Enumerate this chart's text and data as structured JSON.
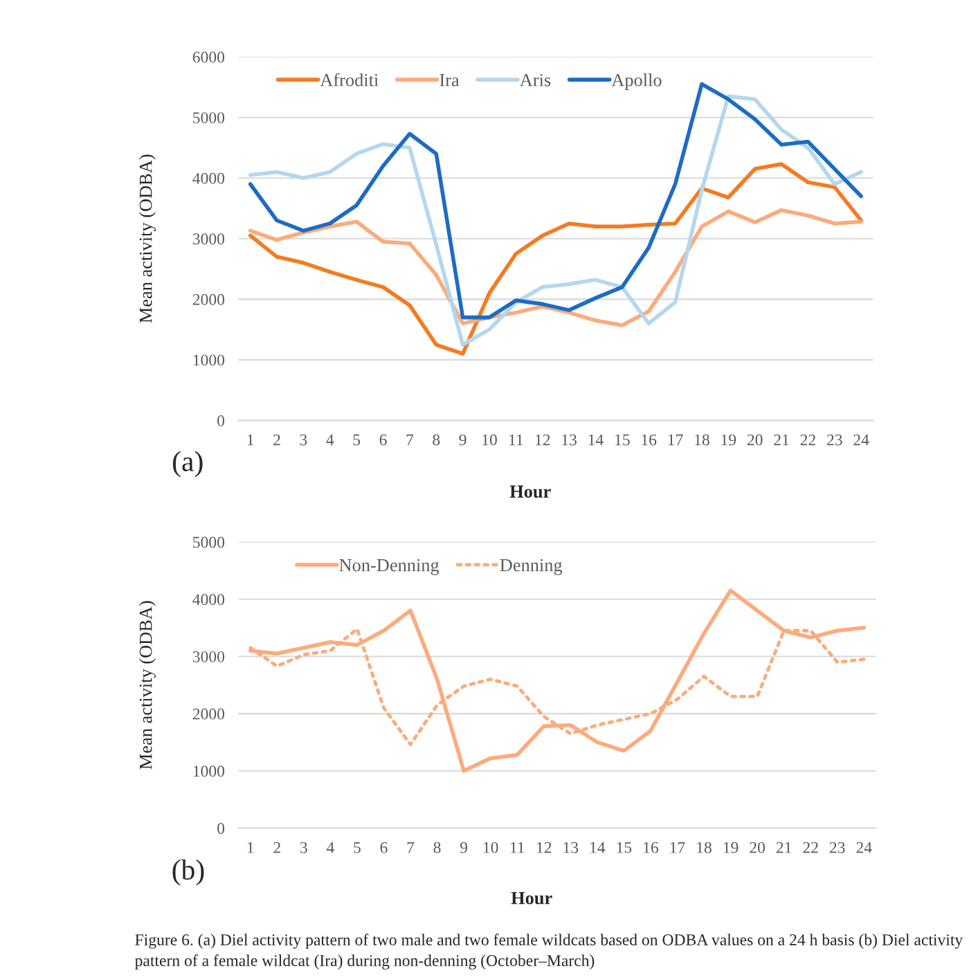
{
  "chart_data": [
    {
      "type": "line",
      "xlabel": "Hour",
      "ylabel": "Mean activity (ODBA)",
      "annotations": [
        "(a)"
      ],
      "categories": [
        "1",
        "2",
        "3",
        "4",
        "5",
        "6",
        "7",
        "8",
        "9",
        "10",
        "11",
        "12",
        "13",
        "14",
        "15",
        "16",
        "17",
        "18",
        "19",
        "20",
        "21",
        "22",
        "23",
        "24"
      ],
      "ylim": [
        0,
        6000
      ],
      "yticks": [
        0,
        1000,
        2000,
        3000,
        4000,
        5000,
        6000
      ],
      "grid": "y",
      "legend": "top",
      "line_style": "solid",
      "series": [
        {
          "name": "Afroditi",
          "color": "#f47b20",
          "values": [
            3050,
            2700,
            2600,
            2450,
            2320,
            2200,
            1900,
            1250,
            1100,
            2100,
            2750,
            3050,
            3250,
            3200,
            3200,
            3230,
            3250,
            3830,
            3680,
            4150,
            4230,
            3930,
            3850,
            3300
          ]
        },
        {
          "name": "Ira",
          "color": "#fbab7c",
          "values": [
            3130,
            2980,
            3100,
            3200,
            3280,
            2950,
            2920,
            2400,
            1600,
            1700,
            1780,
            1880,
            1780,
            1650,
            1570,
            1800,
            2450,
            3200,
            3450,
            3270,
            3470,
            3380,
            3250,
            3280
          ]
        },
        {
          "name": "Aris",
          "color": "#b4d7ee",
          "values": [
            4050,
            4100,
            4000,
            4100,
            4400,
            4560,
            4500,
            2900,
            1250,
            1500,
            1950,
            2200,
            2250,
            2320,
            2200,
            1600,
            1950,
            3800,
            5350,
            5300,
            4800,
            4500,
            3900,
            4100
          ]
        },
        {
          "name": "Apollo",
          "color": "#1d6cc4",
          "values": [
            3900,
            3300,
            3130,
            3250,
            3550,
            4200,
            4730,
            4400,
            1700,
            1700,
            1980,
            1920,
            1820,
            2020,
            2200,
            2850,
            3900,
            5550,
            5300,
            4970,
            4550,
            4600,
            4150,
            3700
          ]
        }
      ]
    },
    {
      "type": "line",
      "xlabel": "Hour",
      "ylabel": "Mean activity (ODBA)",
      "annotations": [
        "(b)",
        "Figure 6. (a) Diel activity pattern of two male and two female wildcats based on ODBA values on a 24 h basis (b) Diel activity pattern of a female wildcat (Ira) during non-denning (October–March)"
      ],
      "categories": [
        "1",
        "2",
        "3",
        "4",
        "5",
        "6",
        "7",
        "8",
        "9",
        "10",
        "11",
        "12",
        "13",
        "14",
        "15",
        "16",
        "17",
        "18",
        "19",
        "20",
        "21",
        "22",
        "23",
        "24"
      ],
      "ylim": [
        0,
        5000
      ],
      "yticks": [
        0,
        1000,
        2000,
        3000,
        4000,
        5000
      ],
      "grid": "y",
      "legend": "top",
      "series": [
        {
          "name": "Non-Denning",
          "color": "#fbab7c",
          "line_style": "solid",
          "values": [
            3100,
            3050,
            3150,
            3250,
            3200,
            3450,
            3800,
            2600,
            1000,
            1220,
            1280,
            1780,
            1800,
            1500,
            1350,
            1700,
            2550,
            3400,
            4150,
            3800,
            3450,
            3330,
            3450,
            3500
          ]
        },
        {
          "name": "Denning",
          "color": "#fbab7c",
          "line_style": "dotted",
          "values": [
            3150,
            2830,
            3030,
            3100,
            3480,
            2100,
            1460,
            2150,
            2480,
            2600,
            2480,
            1950,
            1650,
            1800,
            1900,
            2000,
            2250,
            2650,
            2300,
            2300,
            3450,
            3450,
            2900,
            2950
          ]
        }
      ]
    }
  ]
}
